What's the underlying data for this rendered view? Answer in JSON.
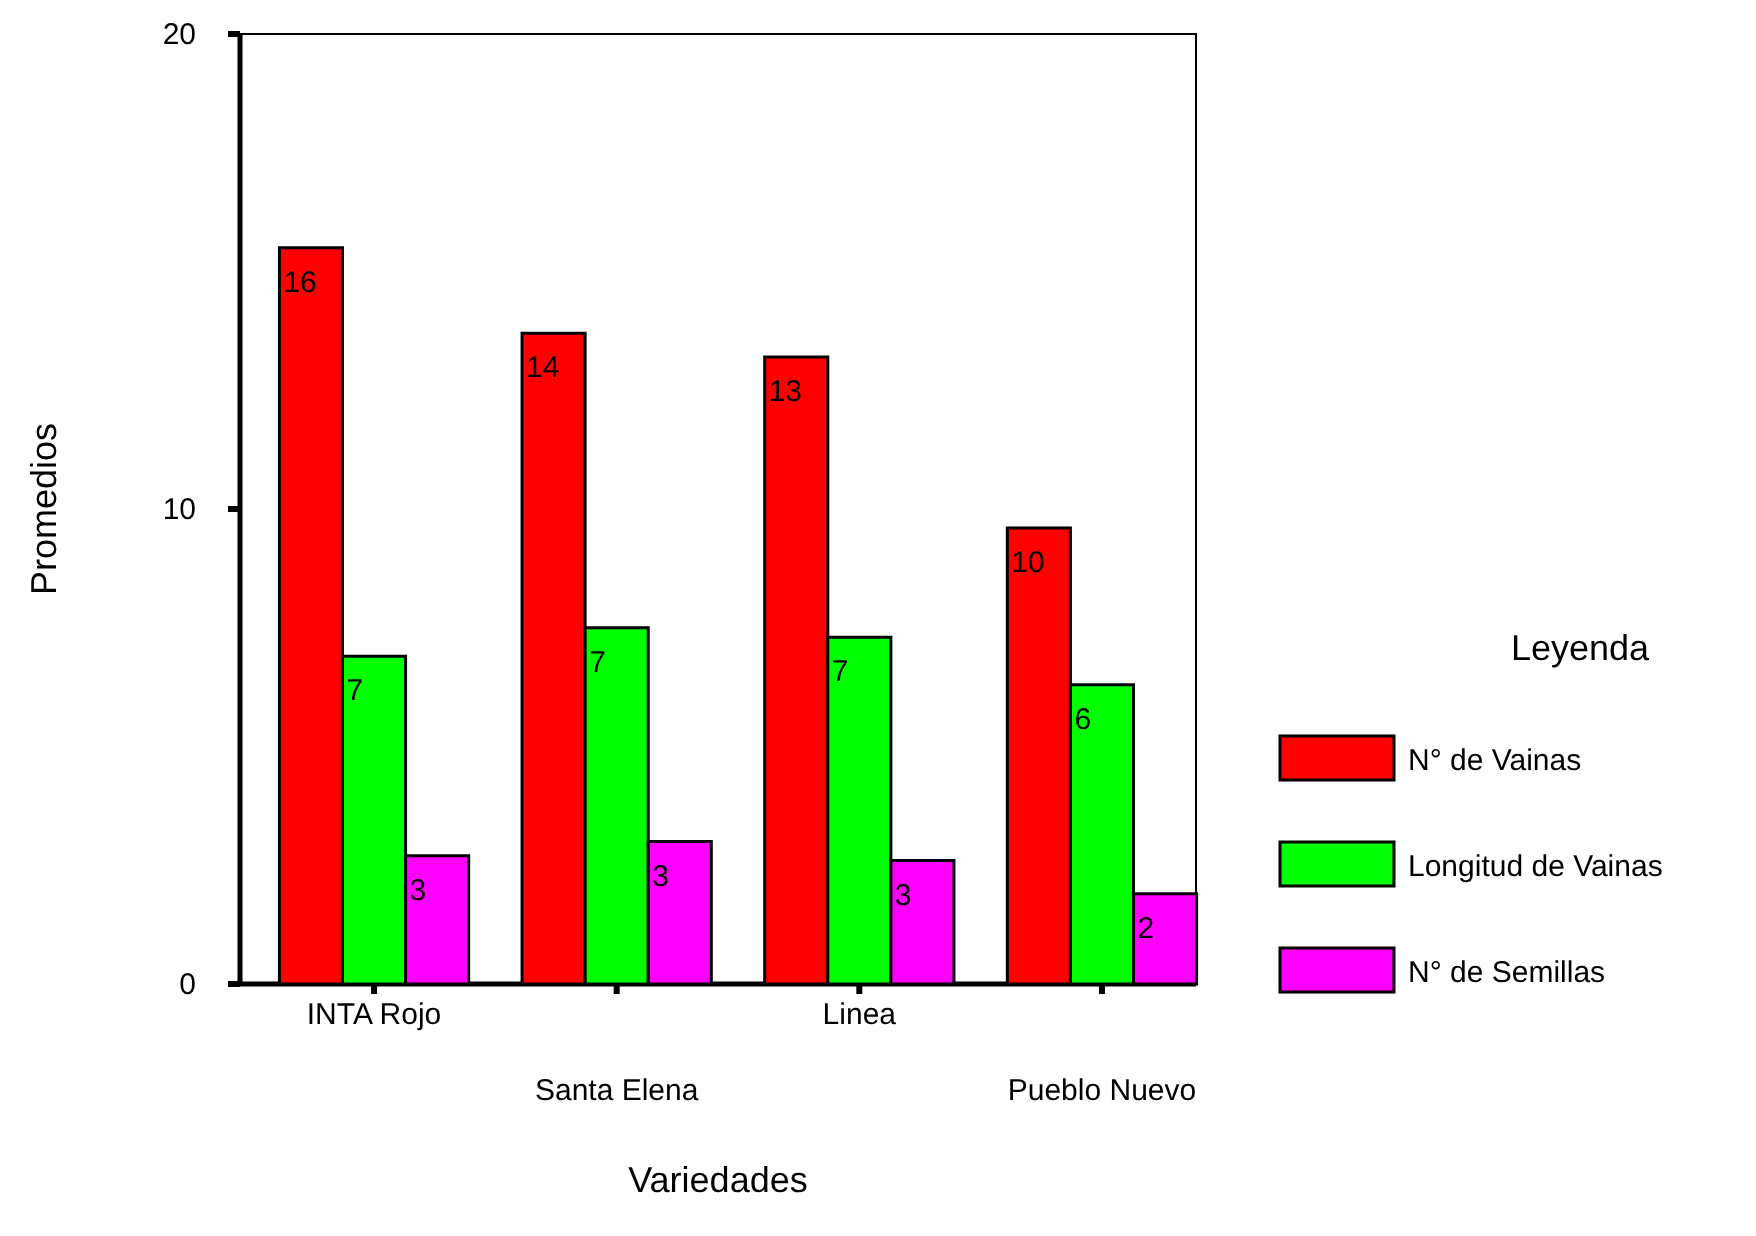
{
  "chart_data": {
    "type": "bar",
    "xlabel": "Variedades",
    "ylabel": "Promedios",
    "legend_title": "Leyenda",
    "legend": "right",
    "categories": [
      "INTA Rojo",
      "Santa Elena",
      "Linea",
      "Pueblo Nuevo"
    ],
    "ylim": [
      0,
      20
    ],
    "yticks": [
      0,
      10,
      20
    ],
    "series": [
      {
        "name": "N° de Vainas",
        "color": "#ff0000",
        "values": [
          15.5,
          13.7,
          13.2,
          9.6
        ],
        "value_labels": [
          "16",
          "14",
          "13",
          "10"
        ]
      },
      {
        "name": "Longitud de Vainas",
        "color": "#00ff00",
        "values": [
          6.9,
          7.5,
          7.3,
          6.3
        ],
        "value_labels": [
          "7",
          "7",
          "7",
          "6"
        ]
      },
      {
        "name": "N° de Semillas",
        "color": "#ff00ff",
        "values": [
          2.7,
          3.0,
          2.6,
          1.9
        ],
        "value_labels": [
          "3",
          "3",
          "3",
          "2"
        ]
      }
    ]
  }
}
